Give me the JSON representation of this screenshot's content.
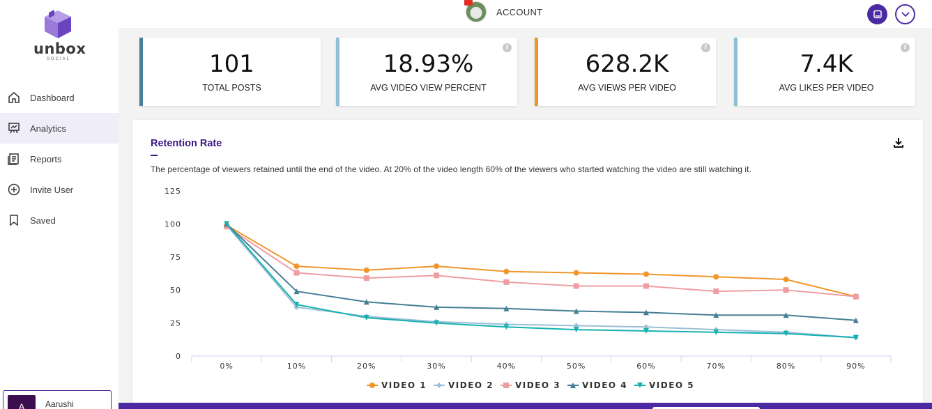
{
  "brand": {
    "name": "unbox",
    "sub": "SOCIAL"
  },
  "sidebar": {
    "items": [
      {
        "label": "Dashboard",
        "icon": "home-icon"
      },
      {
        "label": "Analytics",
        "icon": "presentation-chart-icon",
        "active": true
      },
      {
        "label": "Reports",
        "icon": "document-icon"
      },
      {
        "label": "Invite User",
        "icon": "plus-circle-icon"
      },
      {
        "label": "Saved",
        "icon": "bookmark-icon"
      }
    ],
    "user": {
      "initial": "A",
      "name": "Aarushi"
    }
  },
  "header": {
    "account_label": "ACCOUNT"
  },
  "stats": [
    {
      "value": "101",
      "label": "TOTAL POSTS",
      "color": "#4a7f9b",
      "info": false
    },
    {
      "value": "18.93%",
      "label": "AVG VIDEO VIEW PERCENT",
      "color": "#8fbfd4",
      "info": true
    },
    {
      "value": "628.2K",
      "label": "AVG VIEWS PER VIDEO",
      "color": "#f0962a",
      "info": true
    },
    {
      "value": "7.4K",
      "label": "AVG LIKES PER VIDEO",
      "color": "#8fbfd4",
      "info": true
    }
  ],
  "panel": {
    "title": "Retention Rate",
    "description": "The percentage of viewers retained until the end of the video. At 20% of the video length 60% of the viewers who started watching the video are still watching it."
  },
  "colors": {
    "accent": "#4b2aa3",
    "title": "#3b1b86"
  },
  "chart_data": {
    "type": "line",
    "categories": [
      "0%",
      "10%",
      "20%",
      "30%",
      "40%",
      "50%",
      "60%",
      "70%",
      "80%",
      "90%"
    ],
    "ylim": [
      0,
      125
    ],
    "yticks": [
      0,
      25,
      50,
      75,
      100,
      125
    ],
    "legend": "bottom",
    "series": [
      {
        "name": "VIDEO 1",
        "color": "#f0962a",
        "marker": "circle",
        "values": [
          99,
          68,
          65,
          68,
          64,
          63,
          62,
          60,
          58,
          45
        ]
      },
      {
        "name": "VIDEO 2",
        "color": "#9bbfd6",
        "marker": "diamond",
        "values": [
          99,
          37,
          30,
          26,
          24,
          23,
          22,
          20,
          18,
          14
        ]
      },
      {
        "name": "VIDEO 3",
        "color": "#ee9ea1",
        "marker": "square",
        "values": [
          98,
          63,
          59,
          61,
          56,
          53,
          53,
          49,
          50,
          45
        ]
      },
      {
        "name": "VIDEO 4",
        "color": "#457e95",
        "marker": "triangle",
        "values": [
          100,
          49,
          41,
          37,
          36,
          34,
          33,
          31,
          31,
          27
        ]
      },
      {
        "name": "VIDEO 5",
        "color": "#17b1b0",
        "marker": "triangle-down",
        "values": [
          100,
          39,
          29,
          25,
          22,
          20,
          19,
          18,
          17,
          14
        ]
      }
    ]
  }
}
